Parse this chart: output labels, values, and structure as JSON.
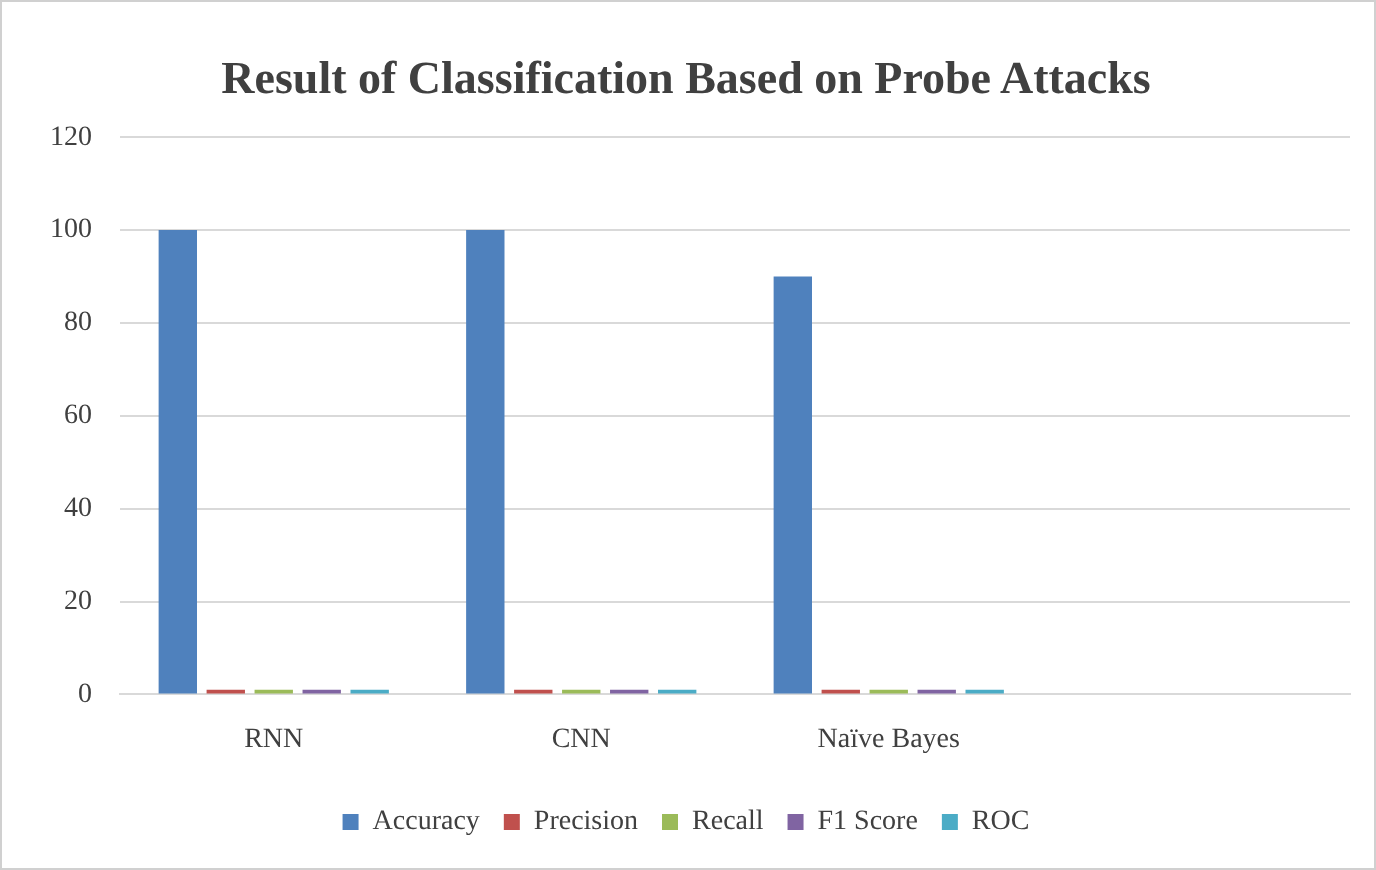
{
  "chart_data": {
    "type": "bar",
    "title": "Result of Classification Based on Probe Attacks",
    "categories": [
      "RNN",
      "CNN",
      "Naïve Bayes",
      null
    ],
    "series": [
      {
        "name": "Accuracy",
        "color": "#4f81bd",
        "values": [
          100,
          100,
          90,
          null
        ]
      },
      {
        "name": "Precision",
        "color": "#c0504d",
        "values": [
          1,
          1,
          1,
          null
        ]
      },
      {
        "name": "Recall",
        "color": "#9bbb59",
        "values": [
          1,
          1,
          1,
          null
        ]
      },
      {
        "name": "F1 Score",
        "color": "#8064a2",
        "values": [
          1,
          1,
          1,
          null
        ]
      },
      {
        "name": "ROC",
        "color": "#4bacc6",
        "values": [
          1,
          1,
          1,
          null
        ]
      }
    ],
    "ylim": [
      0,
      120
    ],
    "yticks": [
      0,
      20,
      40,
      60,
      80,
      100,
      120
    ],
    "grid": "y",
    "legend": "bottom"
  }
}
